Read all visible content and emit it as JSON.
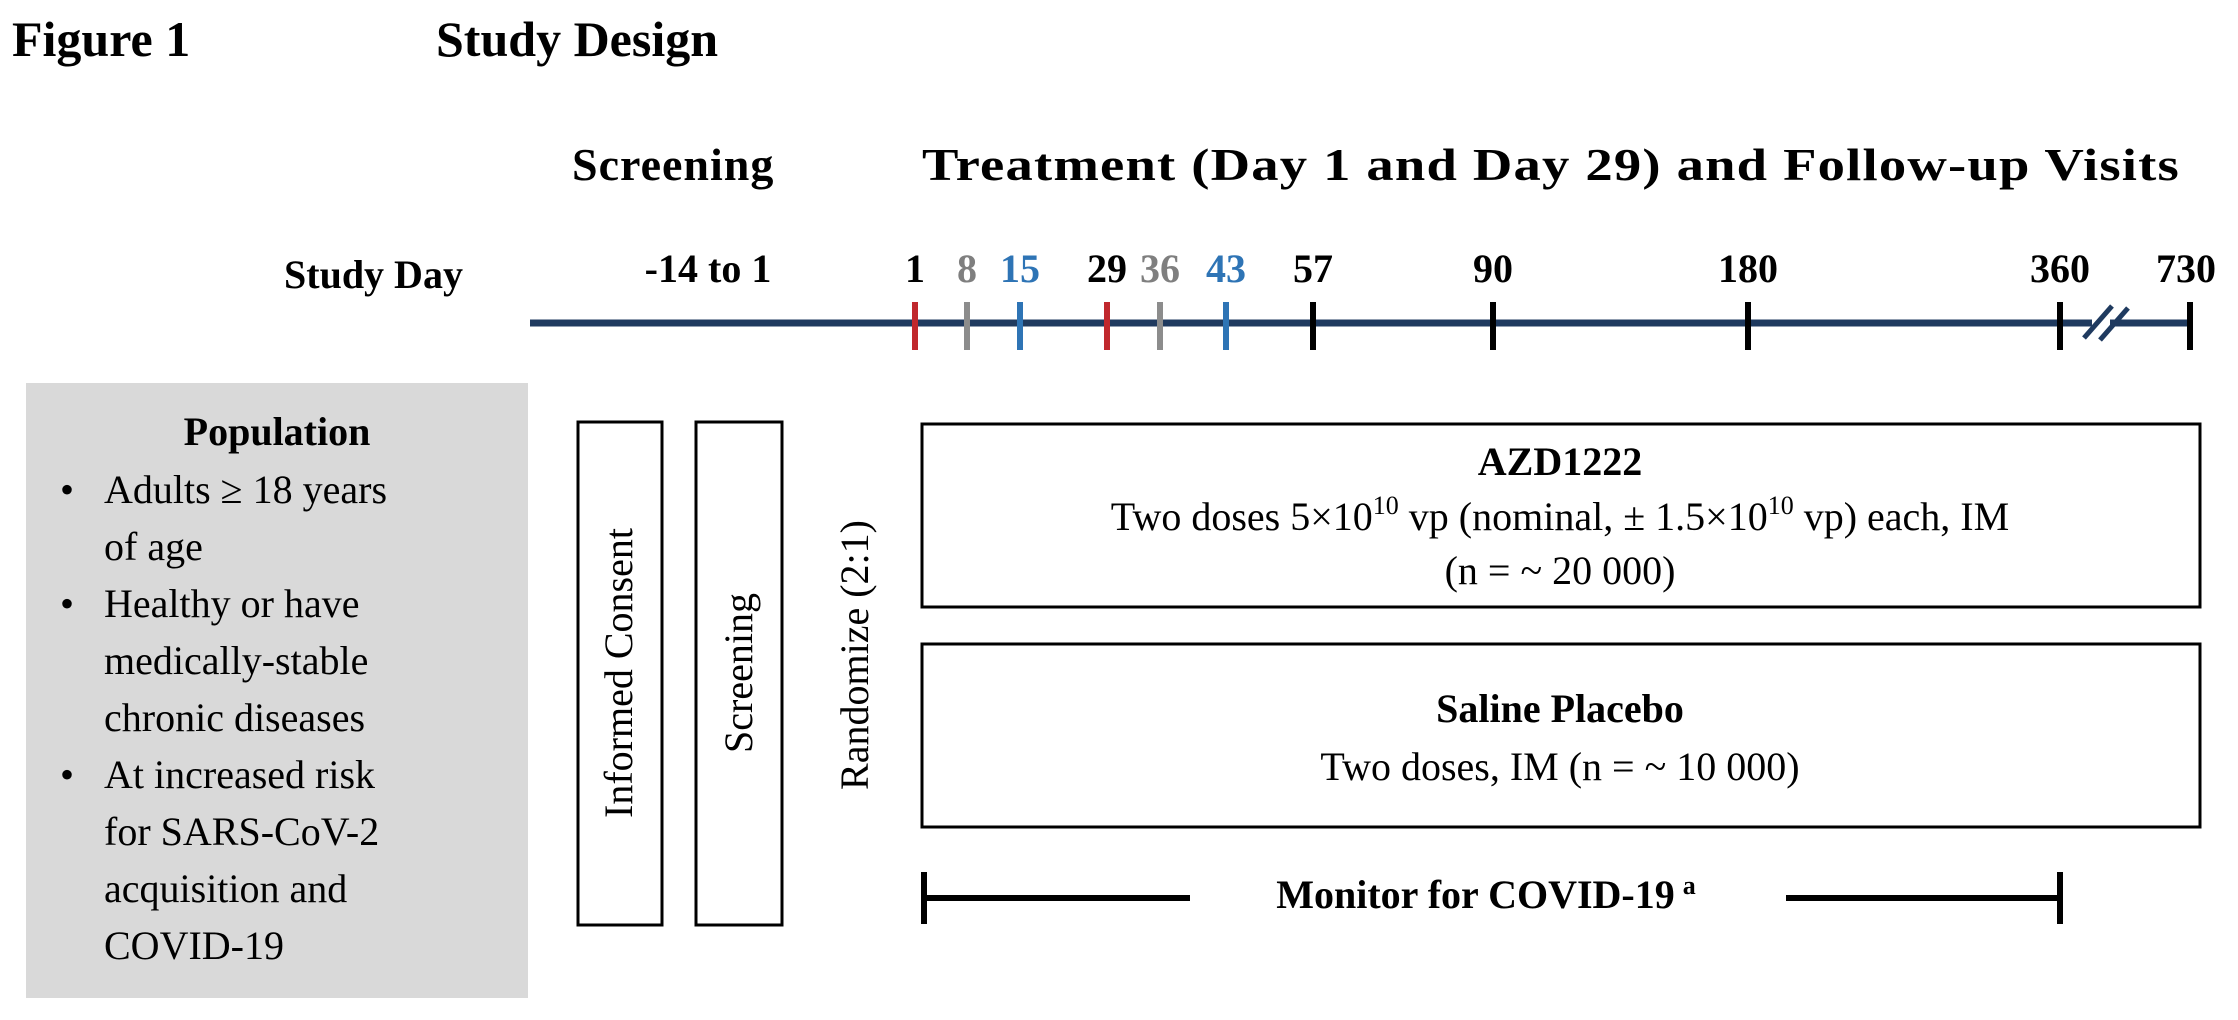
{
  "header": {
    "figure_label": "Figure 1",
    "title": "Study Design"
  },
  "phases": {
    "screening": "Screening",
    "treatment": "Treatment (Day 1 and Day 29) and Follow-up Visits"
  },
  "timeline": {
    "study_day_label": "Study Day",
    "screening_range": "-14 to 1",
    "ticks": [
      {
        "label": "1",
        "color": "#c0282d",
        "label_color": "#000000"
      },
      {
        "label": "8",
        "color": "#8c8c8c",
        "label_color": "#7f7f7f"
      },
      {
        "label": "15",
        "color": "#2e74b5",
        "label_color": "#2e74b5"
      },
      {
        "label": "29",
        "color": "#c0282d",
        "label_color": "#000000"
      },
      {
        "label": "36",
        "color": "#8c8c8c",
        "label_color": "#7f7f7f"
      },
      {
        "label": "43",
        "color": "#2e74b5",
        "label_color": "#2e74b5"
      },
      {
        "label": "57",
        "color": "#000000",
        "label_color": "#000000"
      },
      {
        "label": "90",
        "color": "#000000",
        "label_color": "#000000"
      },
      {
        "label": "180",
        "color": "#000000",
        "label_color": "#000000"
      },
      {
        "label": "360",
        "color": "#000000",
        "label_color": "#000000"
      },
      {
        "label": "730",
        "color": "#000000",
        "label_color": "#000000"
      }
    ],
    "line_color": "#1f3a5f"
  },
  "population": {
    "title": "Population",
    "bullets": [
      [
        "Adults ≥ 18 years",
        "of age"
      ],
      [
        "Healthy or have",
        "medically-stable",
        "chronic diseases"
      ],
      [
        "At increased risk",
        "for SARS-CoV-2",
        "acquisition and",
        "COVID-19"
      ]
    ],
    "bg_color": "#d9d9d9"
  },
  "steps": {
    "informed_consent": "Informed Consent",
    "screening": "Screening",
    "randomize": "Randomize (2:1)"
  },
  "arms": {
    "azd": {
      "title": "AZD1222",
      "dose_prefix": "Two doses 5×10",
      "dose_exp1": "10",
      "dose_mid": " vp (nominal, ± 1.5×10",
      "dose_exp2": "10",
      "dose_suffix": " vp) each, IM",
      "n": "(n = ~ 20 000)"
    },
    "placebo": {
      "title": "Saline Placebo",
      "description": "Two doses, IM (n = ~ 10 000)"
    }
  },
  "monitor": {
    "label": "Monitor for COVID-19",
    "superscript": "a"
  }
}
